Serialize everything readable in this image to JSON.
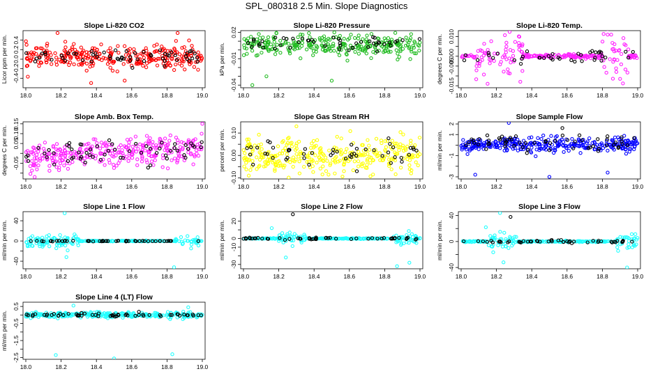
{
  "page_title": "SPL_080318  2.5 Min. Slope Diagnostics",
  "colors": {
    "red": "#ff0000",
    "green": "#22bb22",
    "magenta": "#ff22ff",
    "yellow": "#ffff00",
    "blue": "#0000ff",
    "cyan": "#22ffff",
    "black": "#000000"
  },
  "chart_data": [
    {
      "type": "scatter",
      "title": "Slope Li-820 CO2",
      "xlabel": "",
      "ylabel": "Licor ppm per min.",
      "xlim": [
        18.0,
        19.0
      ],
      "ylim": [
        -0.6,
        0.6
      ],
      "xticks": [
        "18.0",
        "18.2",
        "18.4",
        "18.6",
        "18.8",
        "19.0"
      ],
      "yticks": [
        -0.4,
        -0.2,
        0.0,
        0.2,
        0.4
      ],
      "ytick_labels": [
        "-0.4",
        "-0.2",
        "0.0",
        "0.2",
        "0.4"
      ],
      "series": [
        {
          "color": "red",
          "center": 0.05,
          "spread": 0.12,
          "outliers": [
            [
              18.18,
              0.55
            ],
            [
              18.86,
              0.55
            ],
            [
              18.37,
              -0.5
            ],
            [
              18.56,
              -0.45
            ]
          ],
          "n": 300
        },
        {
          "color": "black",
          "center": 0.05,
          "spread": 0.08,
          "n": 60
        }
      ],
      "grid": false
    },
    {
      "type": "scatter",
      "title": "Slope Li-820 Pressure",
      "xlabel": "",
      "ylabel": "kPa per min.",
      "xlim": [
        18.0,
        19.0
      ],
      "ylim": [
        -0.043,
        0.022
      ],
      "xticks": [
        "18.0",
        "18.2",
        "18.4",
        "18.6",
        "18.8",
        "19.0"
      ],
      "yticks": [
        -0.04,
        -0.03,
        -0.02,
        -0.01,
        0.0,
        0.01,
        0.02
      ],
      "ytick_labels": [
        "-0.04",
        "",
        "",
        "-0.01",
        "",
        "",
        "0.02"
      ],
      "series": [
        {
          "color": "green",
          "center": 0.005,
          "spread": 0.006,
          "outliers": [
            [
              18.05,
              -0.04
            ],
            [
              18.5,
              -0.035
            ],
            [
              18.95,
              0.018
            ],
            [
              18.13,
              -0.03
            ]
          ],
          "n": 300
        },
        {
          "color": "black",
          "center": 0.008,
          "spread": 0.004,
          "n": 50
        }
      ],
      "grid": false
    },
    {
      "type": "scatter",
      "title": "Slope Li-820 Temp.",
      "xlabel": "",
      "ylabel": "degrees C per min.",
      "xlim": [
        18.0,
        19.0
      ],
      "ylim": [
        -0.016,
        0.013
      ],
      "xticks": [
        "18.0",
        "18.2",
        "18.4",
        "18.6",
        "18.8",
        "19.0"
      ],
      "yticks": [
        -0.015,
        -0.01,
        -0.005,
        0.0,
        0.005,
        0.01
      ],
      "ytick_labels": [
        "-0.015",
        "",
        "-0.005",
        "0.000",
        "",
        "0.010"
      ],
      "series": [
        {
          "color": "magenta",
          "center": 0.0,
          "spread": 0.003,
          "bursts": [
            [
              18.08,
              18.35
            ],
            [
              18.8,
              18.95
            ]
          ],
          "outliers": [
            [
              18.15,
              -0.014
            ],
            [
              18.85,
              0.011
            ],
            [
              18.83,
              0.011
            ]
          ],
          "n": 260
        },
        {
          "color": "black",
          "center": 0.0,
          "spread": 0.002,
          "n": 40
        }
      ],
      "grid": false
    },
    {
      "type": "scatter",
      "title": "Slope Amb. Box Temp.",
      "xlabel": "",
      "ylabel": "degrees C per min.",
      "xlim": [
        18.0,
        19.0
      ],
      "ylim": [
        -0.13,
        0.16
      ],
      "xticks": [
        "18.0",
        "18.2",
        "18.4",
        "18.6",
        "18.8",
        "19.0"
      ],
      "yticks": [
        -0.1,
        -0.05,
        0.0,
        0.05,
        0.1,
        0.15
      ],
      "ytick_labels": [
        "",
        "-0.05",
        "",
        "0.05",
        "0.10",
        "0.15"
      ],
      "series": [
        {
          "color": "magenta",
          "center": 0.0,
          "spread": 0.035,
          "trend": 0.05,
          "outliers": [
            [
              19.0,
              0.15
            ],
            [
              18.05,
              -0.12
            ]
          ],
          "n": 320
        },
        {
          "color": "black",
          "center": 0.0,
          "spread": 0.03,
          "trend": 0.03,
          "n": 60
        }
      ],
      "grid": false
    },
    {
      "type": "scatter",
      "title": "Slope Gas Stream RH",
      "xlabel": "",
      "ylabel": "percent per min.",
      "xlim": [
        18.0,
        19.0
      ],
      "ylim": [
        -0.105,
        0.15
      ],
      "xticks": [
        "18.0",
        "18.2",
        "18.4",
        "18.6",
        "18.8",
        "19.0"
      ],
      "yticks": [
        -0.1,
        -0.05,
        0.0,
        0.05,
        0.1
      ],
      "ytick_labels": [
        "-0.10",
        "",
        "0.00",
        "",
        "0.10"
      ],
      "series": [
        {
          "color": "yellow",
          "center": 0.0,
          "spread": 0.04,
          "outliers": [
            [
              18.3,
              0.13
            ],
            [
              18.03,
              -0.09
            ],
            [
              18.95,
              -0.08
            ]
          ],
          "n": 320
        },
        {
          "color": "black",
          "center": 0.0,
          "spread": 0.035,
          "n": 50
        }
      ],
      "grid": false
    },
    {
      "type": "scatter",
      "title": "Slope Sample Flow",
      "xlabel": "",
      "ylabel": "ml/min per min.",
      "xlim": [
        18.0,
        19.0
      ],
      "ylim": [
        -3.2,
        2.2
      ],
      "xticks": [
        "18.0",
        "18.2",
        "18.4",
        "18.6",
        "18.8",
        "19.0"
      ],
      "yticks": [
        -3,
        -2,
        -1,
        0,
        1,
        2
      ],
      "ytick_labels": [
        "-3",
        "",
        "-1",
        "",
        "1",
        "2"
      ],
      "series": [
        {
          "color": "blue",
          "center": 0.0,
          "spread": 0.35,
          "outliers": [
            [
              18.27,
              2.1
            ],
            [
              18.08,
              -2.8
            ],
            [
              18.5,
              -3.0
            ],
            [
              18.83,
              -2.6
            ]
          ],
          "n": 320
        },
        {
          "color": "black",
          "center": 0.2,
          "spread": 0.45,
          "n": 60
        }
      ],
      "grid": false
    },
    {
      "type": "scatter",
      "title": "Slope Line 1 Flow",
      "xlabel": "",
      "ylabel": "ml/min per min.",
      "xlim": [
        18.0,
        19.0
      ],
      "ylim": [
        -55,
        58
      ],
      "xticks": [
        "18.0",
        "18.2",
        "18.4",
        "18.6",
        "18.8",
        "19.0"
      ],
      "yticks": [
        -40,
        -20,
        0,
        20,
        40
      ],
      "ytick_labels": [
        "-40",
        "",
        "0",
        "",
        "40"
      ],
      "series": [
        {
          "color": "cyan",
          "center": 0.0,
          "spread": 2.5,
          "bursts": [
            [
              18.0,
              18.3
            ],
            [
              18.85,
              18.98
            ]
          ],
          "outliers": [
            [
              18.22,
              55
            ],
            [
              18.84,
              -52
            ],
            [
              18.23,
              -32
            ]
          ],
          "n": 280
        },
        {
          "color": "black",
          "center": 0.0,
          "spread": 0.5,
          "n": 50
        }
      ],
      "grid": false
    },
    {
      "type": "scatter",
      "title": "Slope Line 2 Flow",
      "xlabel": "",
      "ylabel": "ml/min per min.",
      "xlim": [
        18.0,
        19.0
      ],
      "ylim": [
        -35,
        31
      ],
      "xticks": [
        "18.0",
        "18.2",
        "18.4",
        "18.6",
        "18.8",
        "19.0"
      ],
      "yticks": [
        -30,
        -20,
        -10,
        0,
        10,
        20
      ],
      "ytick_labels": [
        "-30",
        "",
        "-10",
        "0",
        "",
        "20"
      ],
      "series": [
        {
          "color": "cyan",
          "center": 0.0,
          "spread": 1.5,
          "bursts": [
            [
              18.2,
              18.35
            ],
            [
              18.85,
              18.98
            ]
          ],
          "outliers": [
            [
              18.24,
              -22
            ],
            [
              18.87,
              -32
            ],
            [
              18.16,
              12
            ],
            [
              18.94,
              -28
            ]
          ],
          "n": 280
        },
        {
          "color": "black",
          "center": 0.0,
          "spread": 0.6,
          "outliers": [
            [
              18.28,
              28
            ]
          ],
          "n": 50
        }
      ],
      "grid": false
    },
    {
      "type": "scatter",
      "title": "Slope Line 3 Flow",
      "xlabel": "",
      "ylabel": "ml/min per min.",
      "xlim": [
        18.0,
        19.0
      ],
      "ylim": [
        -42,
        46
      ],
      "xticks": [
        "18.0",
        "18.2",
        "18.4",
        "18.6",
        "18.8",
        "19.0"
      ],
      "yticks": [
        -40,
        -20,
        0,
        20,
        40
      ],
      "ytick_labels": [
        "-40",
        "",
        "0",
        "",
        "40"
      ],
      "series": [
        {
          "color": "cyan",
          "center": 0.0,
          "spread": 3,
          "bursts": [
            [
              18.15,
              18.32
            ],
            [
              18.88,
              19.0
            ]
          ],
          "outliers": [
            [
              18.22,
              44
            ],
            [
              18.24,
              -32
            ],
            [
              18.94,
              -40
            ],
            [
              18.14,
              22
            ]
          ],
          "n": 280
        },
        {
          "color": "black",
          "center": 0.0,
          "spread": 1,
          "outliers": [
            [
              18.28,
              38
            ]
          ],
          "n": 50
        }
      ],
      "grid": false
    },
    {
      "type": "scatter",
      "title": "Slope Line 4 (LT) Flow",
      "xlabel": "",
      "ylabel": "ml/min per min.",
      "xlim": [
        18.0,
        19.0
      ],
      "ylim": [
        -2.6,
        0.75
      ],
      "xticks": [
        "18.0",
        "18.2",
        "18.4",
        "18.6",
        "18.8",
        "19.0"
      ],
      "yticks": [
        -2.5,
        -2.0,
        -1.5,
        -1.0,
        -0.5,
        0.0,
        0.5
      ],
      "ytick_labels": [
        "-2.5",
        "",
        "-1.5",
        "",
        "-0.5",
        "",
        "0.5"
      ],
      "series": [
        {
          "color": "cyan",
          "center": 0.0,
          "spread": 0.08,
          "outliers": [
            [
              18.17,
              -2.35
            ],
            [
              18.5,
              -2.55
            ],
            [
              18.83,
              -2.3
            ],
            [
              18.27,
              0.55
            ],
            [
              18.92,
              0.45
            ]
          ],
          "n": 320
        },
        {
          "color": "black",
          "center": 0.0,
          "spread": 0.05,
          "n": 60
        }
      ],
      "grid": false
    }
  ]
}
